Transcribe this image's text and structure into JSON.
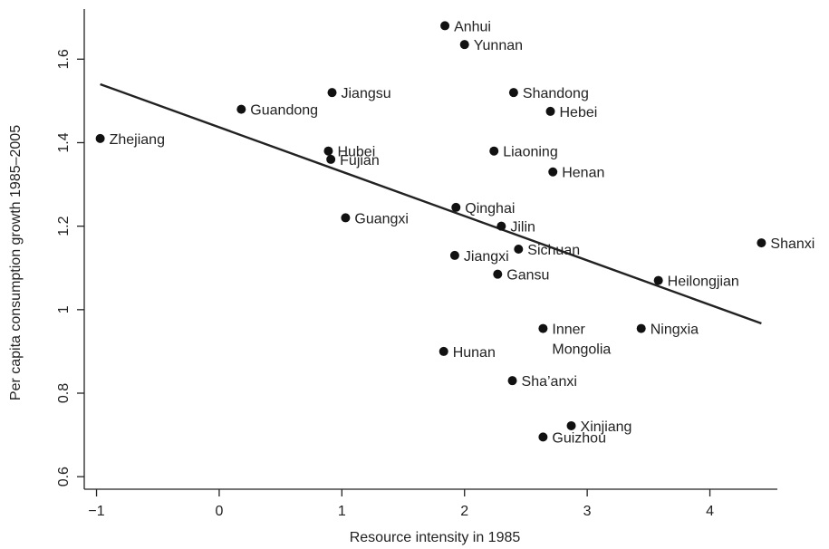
{
  "chart_data": {
    "type": "scatter",
    "xlabel": "Resource intensity in 1985",
    "ylabel": "Per capita consumption growth 1985–2005",
    "xlim": [
      -1.1,
      4.55
    ],
    "ylim": [
      0.57,
      1.72
    ],
    "xticks": [
      -1,
      0,
      1,
      2,
      3,
      4
    ],
    "yticks": [
      0.6,
      0.8,
      1,
      1.2,
      1.4,
      1.6
    ],
    "xtick_labels": [
      "−1",
      "0",
      "1",
      "2",
      "3",
      "4"
    ],
    "ytick_labels": [
      "0.6",
      "0.8",
      "1",
      "1.2",
      "1.4",
      "1.6"
    ],
    "grid": false,
    "points": [
      {
        "label": "Anhui",
        "x": 1.84,
        "y": 1.68
      },
      {
        "label": "Yunnan",
        "x": 2.0,
        "y": 1.635
      },
      {
        "label": "Jiangsu",
        "x": 0.92,
        "y": 1.52
      },
      {
        "label": "Shandong",
        "x": 2.4,
        "y": 1.52
      },
      {
        "label": "Guandong",
        "x": 0.18,
        "y": 1.48
      },
      {
        "label": "Hebei",
        "x": 2.7,
        "y": 1.475
      },
      {
        "label": "Zhejiang",
        "x": -0.97,
        "y": 1.41
      },
      {
        "label": "Hubei",
        "x": 0.89,
        "y": 1.38
      },
      {
        "label": "Liaoning",
        "x": 2.24,
        "y": 1.38
      },
      {
        "label": "Fujian",
        "x": 0.91,
        "y": 1.36
      },
      {
        "label": "Henan",
        "x": 2.72,
        "y": 1.33
      },
      {
        "label": "Qinghai",
        "x": 1.93,
        "y": 1.245
      },
      {
        "label": "Guangxi",
        "x": 1.03,
        "y": 1.22
      },
      {
        "label": "Jilin",
        "x": 2.3,
        "y": 1.2
      },
      {
        "label": "Shanxi",
        "x": 4.42,
        "y": 1.16
      },
      {
        "label": "Sichuan",
        "x": 2.44,
        "y": 1.145
      },
      {
        "label": "Jiangxi",
        "x": 1.92,
        "y": 1.13
      },
      {
        "label": "Gansu",
        "x": 2.27,
        "y": 1.085
      },
      {
        "label": "Heilongjian",
        "x": 3.58,
        "y": 1.07
      },
      {
        "label": "Inner\nMongolia",
        "x": 2.64,
        "y": 0.955
      },
      {
        "label": "Ningxia",
        "x": 3.44,
        "y": 0.955
      },
      {
        "label": "Hunan",
        "x": 1.83,
        "y": 0.9
      },
      {
        "label": "Sha’anxi",
        "x": 2.39,
        "y": 0.83
      },
      {
        "label": "Xinjiang",
        "x": 2.87,
        "y": 0.722
      },
      {
        "label": "Guizhou",
        "x": 2.64,
        "y": 0.695
      }
    ],
    "fit_line": {
      "x": [
        -0.97,
        4.42
      ],
      "y": [
        1.54,
        0.967
      ]
    }
  }
}
